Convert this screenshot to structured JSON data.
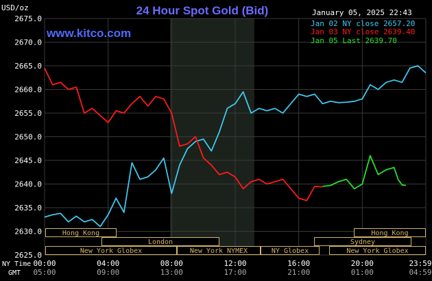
{
  "header": {
    "title": "24 Hour Spot Gold (Bid)",
    "datetime": "January 05, 2025 22:43",
    "site": "www.kitco.com",
    "unit": "USD/oz"
  },
  "timezone_labels": {
    "ny": "NY Time",
    "gmt": "GMT"
  },
  "sessions": [
    {
      "name": "Hong Kong"
    },
    {
      "name": "London"
    },
    {
      "name": "New York Globex"
    },
    {
      "name": "New York NYMEX"
    },
    {
      "name": "NY Globex"
    },
    {
      "name": "Sydney"
    },
    {
      "name": "Hong Kong"
    },
    {
      "name": "New York Globex"
    }
  ],
  "colors": {
    "background": "#000000",
    "title": "#6b6bff",
    "site": "#4f6bff",
    "grid": "#3a3a3a",
    "london_shade": "#1d241d",
    "jan02": "#3fc8f0",
    "jan03": "#ff1a1a",
    "jan05": "#28e028",
    "text": "#ffffff",
    "session_box": "#d4b46a"
  },
  "chart_data": {
    "type": "line",
    "xlabel": "",
    "ylabel": "USD/oz",
    "ylim": [
      2625,
      2675
    ],
    "y_ticks": [
      "2675.0",
      "2670.0",
      "2665.0",
      "2660.0",
      "2655.0",
      "2650.0",
      "2645.0",
      "2640.0",
      "2635.0",
      "2630.0",
      "2625.0"
    ],
    "x_ticks_ny": [
      "00:00",
      "04:00",
      "08:00",
      "12:00",
      "16:00",
      "20:00",
      "23:59"
    ],
    "x_ticks_gmt": [
      "05:00",
      "09:00",
      "13:00",
      "17:00",
      "21:00",
      "01:00",
      "04:59"
    ],
    "grid": true,
    "legend_position": "top-right",
    "series": [
      {
        "name": "Jan 02 NY close 2657.20",
        "color": "#3fc8f0",
        "x": [
          0,
          0.5,
          1,
          1.5,
          2,
          2.5,
          3,
          3.5,
          4,
          4.5,
          5,
          5.5,
          6,
          6.5,
          7,
          7.5,
          8,
          8.5,
          9,
          9.5,
          10,
          10.5,
          11,
          11.5,
          12,
          12.5,
          13,
          13.5,
          14,
          14.5,
          15,
          15.5,
          16,
          16.5,
          17,
          17.5,
          18,
          18.5,
          19,
          19.5,
          20,
          20.5,
          21,
          21.5,
          22,
          22.5,
          23,
          23.5,
          24
        ],
        "values": [
          2633.0,
          2633.5,
          2633.8,
          2632.0,
          2633.2,
          2632.0,
          2632.5,
          2631.0,
          2633.5,
          2637.0,
          2634.0,
          2644.5,
          2641.0,
          2641.5,
          2643.0,
          2645.5,
          2638.0,
          2644.0,
          2647.5,
          2649.0,
          2649.5,
          2647.0,
          2651.0,
          2656.0,
          2657.0,
          2659.5,
          2655.0,
          2656.0,
          2655.5,
          2656.0,
          2655.0,
          2657.0,
          2659.0,
          2658.5,
          2659.0,
          2657.0,
          2657.5,
          2657.2,
          2657.3,
          2657.5,
          2658.0,
          2661.0,
          2660.0,
          2661.5,
          2662.0,
          2661.5,
          2664.5,
          2665.0,
          2663.5
        ]
      },
      {
        "name": "Jan 03 NY close 2639.40",
        "color": "#ff1a1a",
        "x": [
          0,
          0.5,
          1,
          1.5,
          2,
          2.5,
          3,
          3.5,
          4,
          4.5,
          5,
          5.5,
          6,
          6.5,
          7,
          7.5,
          8,
          8.5,
          9,
          9.5,
          10,
          10.5,
          11,
          11.5,
          12,
          12.5,
          13,
          13.5,
          14,
          14.5,
          15,
          15.5,
          16,
          16.5,
          17,
          17.5
        ],
        "values": [
          2664.5,
          2661.0,
          2661.5,
          2660.0,
          2660.5,
          2655.0,
          2656.0,
          2654.5,
          2653.0,
          2655.5,
          2655.0,
          2657.0,
          2658.5,
          2656.5,
          2658.5,
          2658.0,
          2655.0,
          2648.0,
          2648.5,
          2650.0,
          2645.5,
          2644.0,
          2642.0,
          2642.5,
          2641.5,
          2639.0,
          2640.5,
          2641.0,
          2640.0,
          2640.5,
          2641.0,
          2639.0,
          2637.0,
          2636.5,
          2639.5,
          2639.4
        ]
      },
      {
        "name": "Jan 05 Last 2639.70",
        "color": "#28e028",
        "x": [
          17.5,
          18,
          18.5,
          19,
          19.5,
          20,
          20.5,
          21,
          21.5,
          22,
          22.25,
          22.5,
          22.75
        ],
        "values": [
          2639.5,
          2639.7,
          2640.5,
          2641.0,
          2639.0,
          2640.0,
          2646.0,
          2642.0,
          2643.0,
          2643.5,
          2641.0,
          2639.8,
          2639.7
        ]
      }
    ]
  }
}
